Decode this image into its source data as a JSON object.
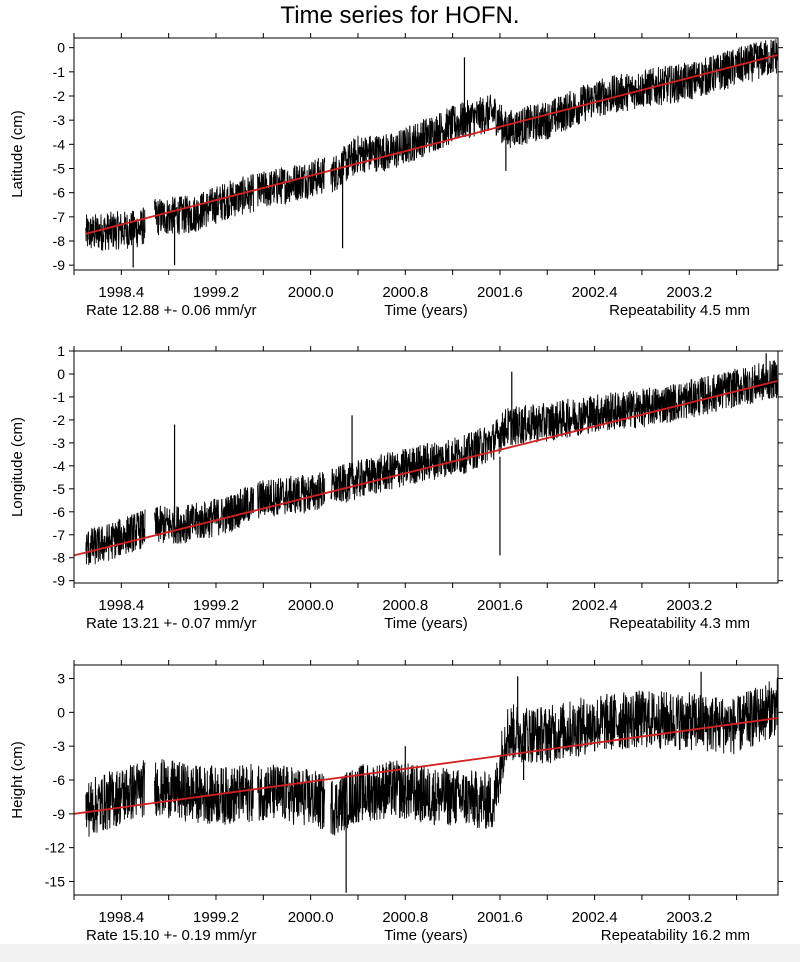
{
  "page": {
    "title": "Time series for HOFN."
  },
  "colors": {
    "data": "#000000",
    "fit_line": "#d42020",
    "axes": "#000000"
  },
  "chart_data": [
    {
      "type": "line",
      "ylabel": "Latitude (cm)",
      "xlabel": "Time (years)",
      "rate_text": "Rate 12.88 +- 0.06 mm/yr",
      "repeatability_text": "Repeatability 4.5 mm",
      "xlim": [
        1998.0,
        2003.95
      ],
      "ylim": [
        -9.2,
        0.4
      ],
      "xticks": [
        "1998.4",
        "1999.2",
        "2000.0",
        "2000.8",
        "2001.6",
        "2002.4",
        "2003.2"
      ],
      "yticks": [
        "0",
        "-1",
        "-2",
        "-3",
        "-4",
        "-5",
        "-6",
        "-7",
        "-8",
        "-9"
      ],
      "fit": {
        "x": [
          1998.1,
          2003.95
        ],
        "y": [
          -7.7,
          -0.3
        ]
      },
      "series": [
        {
          "x": [
            1998.1,
            1998.25,
            1998.55,
            1998.7,
            1999.0,
            1999.3,
            1999.6,
            2000.0,
            2000.2,
            2000.4,
            2000.7,
            2001.0,
            2001.3,
            2001.55,
            2001.65,
            2002.0,
            2002.4,
            2002.8,
            2003.2,
            2003.6,
            2003.95
          ],
          "y": [
            -7.7,
            -7.6,
            -7.5,
            -7.0,
            -6.9,
            -6.3,
            -5.9,
            -5.4,
            -5.2,
            -4.4,
            -4.3,
            -3.6,
            -3.0,
            -2.7,
            -3.4,
            -3.0,
            -2.1,
            -1.7,
            -1.4,
            -0.8,
            -0.3
          ],
          "noise": 0.8
        }
      ],
      "spikes": [
        {
          "x": 2000.27,
          "y0": -4.8,
          "y1": -8.3
        },
        {
          "x": 2001.3,
          "y0": -3.5,
          "y1": -0.4
        },
        {
          "x": 2001.65,
          "y0": -3.3,
          "y1": -5.1
        },
        {
          "x": 1998.5,
          "y0": -7.5,
          "y1": -9.1
        },
        {
          "x": 1998.85,
          "y0": -7.1,
          "y1": -9.0
        }
      ]
    },
    {
      "type": "line",
      "ylabel": "Longitude (cm)",
      "xlabel": "Time (years)",
      "rate_text": "Rate 13.21 +- 0.07 mm/yr",
      "repeatability_text": "Repeatability 4.3 mm",
      "xlim": [
        1998.0,
        2003.95
      ],
      "ylim": [
        -9.1,
        1.0
      ],
      "xticks": [
        "1998.4",
        "1999.2",
        "2000.0",
        "2000.8",
        "2001.6",
        "2002.4",
        "2003.2"
      ],
      "yticks": [
        "1",
        "0",
        "-1",
        "-2",
        "-3",
        "-4",
        "-5",
        "-6",
        "-7",
        "-8",
        "-9"
      ],
      "fit": {
        "x": [
          1998.0,
          2003.95
        ],
        "y": [
          -7.9,
          -0.3
        ]
      },
      "series": [
        {
          "x": [
            1998.1,
            1998.25,
            1998.55,
            1998.7,
            1999.0,
            1999.3,
            1999.6,
            2000.0,
            2000.2,
            2000.4,
            2000.7,
            2001.0,
            2001.3,
            2001.55,
            2001.65,
            2002.0,
            2002.4,
            2002.8,
            2003.2,
            2003.6,
            2003.95
          ],
          "y": [
            -7.6,
            -7.4,
            -6.8,
            -6.6,
            -6.5,
            -6.1,
            -5.4,
            -5.2,
            -4.9,
            -4.6,
            -4.2,
            -3.8,
            -3.5,
            -2.9,
            -2.3,
            -2.1,
            -1.7,
            -1.5,
            -1.1,
            -0.6,
            -0.2
          ],
          "noise": 0.85
        }
      ],
      "spikes": [
        {
          "x": 1998.85,
          "y0": -6.6,
          "y1": -2.2
        },
        {
          "x": 2000.35,
          "y0": -4.8,
          "y1": -1.8
        },
        {
          "x": 2001.6,
          "y0": -3.6,
          "y1": -7.9
        },
        {
          "x": 2001.7,
          "y0": -2.2,
          "y1": 0.1
        },
        {
          "x": 2003.85,
          "y0": -0.6,
          "y1": 0.9
        }
      ]
    },
    {
      "type": "line",
      "ylabel": "Height (cm)",
      "xlabel": "Time (years)",
      "rate_text": "Rate 15.10 +- 0.19 mm/yr",
      "repeatability_text": "Repeatability 16.2 mm",
      "xlim": [
        1998.0,
        2003.95
      ],
      "ylim": [
        -16.2,
        4.2
      ],
      "xticks": [
        "1998.4",
        "1999.2",
        "2000.0",
        "2000.8",
        "2001.6",
        "2002.4",
        "2003.2"
      ],
      "yticks": [
        "3",
        "0",
        "-3",
        "-6",
        "-9",
        "-12",
        "-15"
      ],
      "fit": {
        "x": [
          1998.0,
          2003.95
        ],
        "y": [
          -9.0,
          -0.5
        ]
      },
      "series": [
        {
          "x": [
            1998.1,
            1998.25,
            1998.55,
            1998.7,
            1999.0,
            1999.3,
            1999.6,
            2000.0,
            2000.2,
            2000.4,
            2000.7,
            2001.0,
            2001.3,
            2001.55,
            2001.65,
            2002.0,
            2002.4,
            2002.8,
            2003.2,
            2003.6,
            2003.95
          ],
          "y": [
            -8.6,
            -8.0,
            -6.8,
            -6.6,
            -7.2,
            -7.4,
            -7.0,
            -7.6,
            -8.4,
            -7.2,
            -6.8,
            -7.4,
            -7.6,
            -8.0,
            -1.8,
            -2.0,
            -1.0,
            -0.6,
            -0.8,
            -1.2,
            0.6
          ],
          "noise": 2.6
        }
      ],
      "spikes": [
        {
          "x": 2000.3,
          "y0": -8.0,
          "y1": -16.0
        },
        {
          "x": 2000.8,
          "y0": -7.0,
          "y1": -3.0
        },
        {
          "x": 2001.75,
          "y0": -2.0,
          "y1": 3.2
        },
        {
          "x": 2003.3,
          "y0": -0.5,
          "y1": 3.6
        },
        {
          "x": 2001.8,
          "y0": -3.0,
          "y1": -6.0
        }
      ]
    }
  ]
}
